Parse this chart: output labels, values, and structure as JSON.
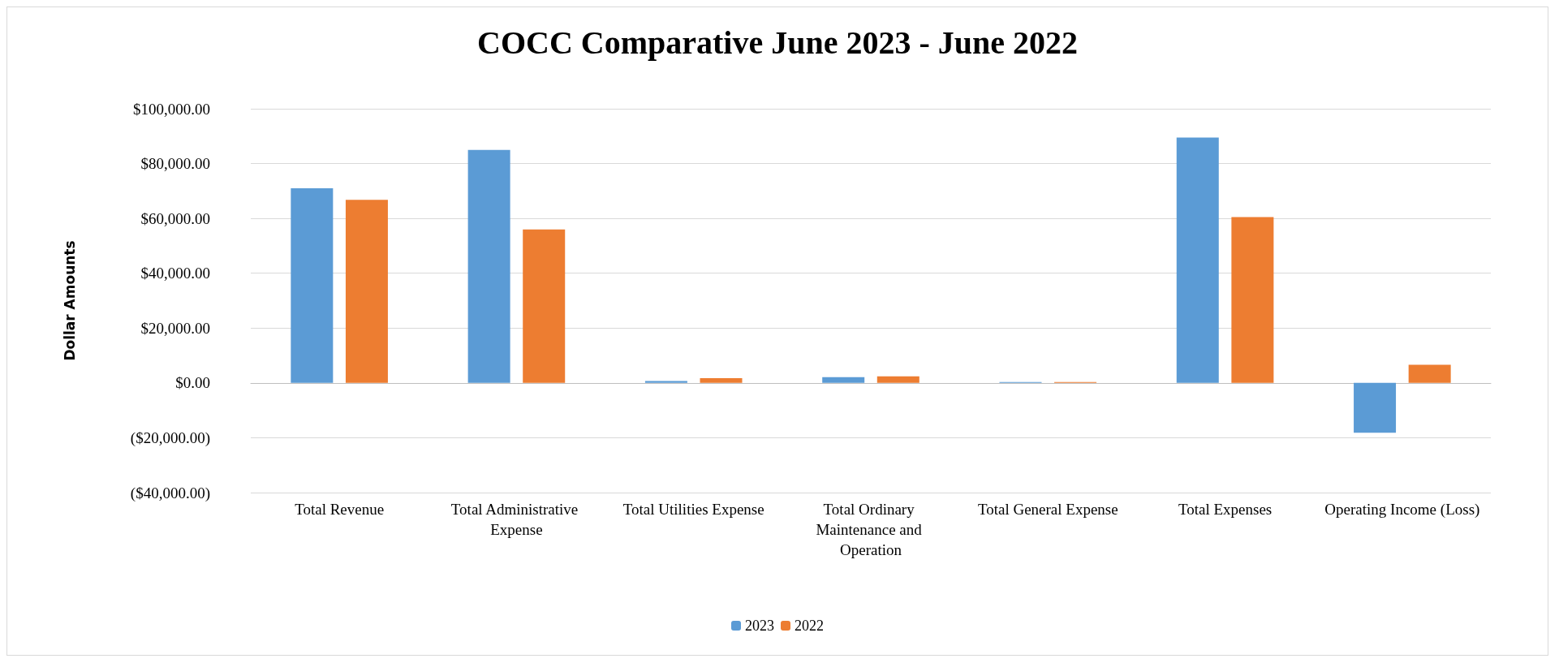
{
  "chart_data": {
    "type": "bar",
    "title": "COCC Comparative June 2023 - June 2022",
    "ylabel": "Dollar Amounts",
    "categories": [
      "Total Revenue",
      "Total Administrative Expense",
      "Total Utilities Expense",
      "Total Ordinary Maintenance and Operation",
      "Total General Expense",
      "Total Expenses",
      "Operating Income (Loss)"
    ],
    "series": [
      {
        "name": "2023",
        "color": "#5b9bd5",
        "values": [
          71000,
          85000,
          700,
          2100,
          300,
          89500,
          -18200
        ]
      },
      {
        "name": "2022",
        "color": "#ed7d31",
        "values": [
          66800,
          56000,
          1700,
          2400,
          300,
          60500,
          6600
        ]
      }
    ],
    "ylim": [
      -40000,
      100000
    ],
    "yticks": [
      {
        "value": -40000,
        "label": "($40,000.00)"
      },
      {
        "value": -20000,
        "label": "($20,000.00)"
      },
      {
        "value": 0,
        "label": "$0.00"
      },
      {
        "value": 20000,
        "label": "$20,000.00"
      },
      {
        "value": 40000,
        "label": "$40,000.00"
      },
      {
        "value": 60000,
        "label": "$60,000.00"
      },
      {
        "value": 80000,
        "label": "$80,000.00"
      },
      {
        "value": 100000,
        "label": "$100,000.00"
      }
    ],
    "grid": "y",
    "legend": "bottom"
  }
}
